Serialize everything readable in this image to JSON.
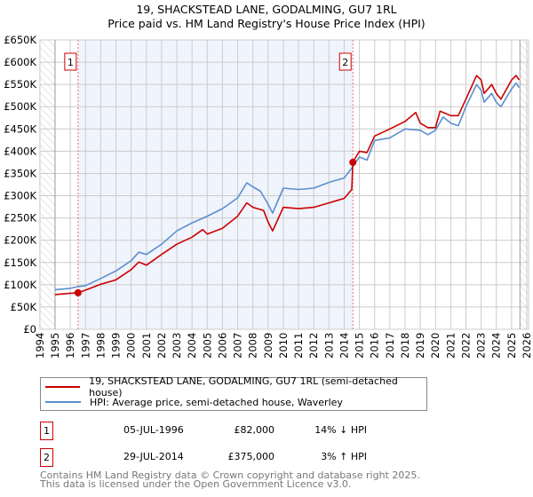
{
  "title_line1": "19, SHACKSTEAD LANE, GODALMING, GU7 1RL",
  "title_line2": "Price paid vs. HM Land Registry's House Price Index (HPI)",
  "chart_data": {
    "type": "line",
    "title": "19, SHACKSTEAD LANE, GODALMING, GU7 1RL — Price paid vs. HM Land Registry's House Price Index (HPI)",
    "xlabel": "",
    "ylabel": "",
    "xlim": [
      1994,
      2026
    ],
    "ylim": [
      0,
      650000
    ],
    "grid": true,
    "x_ticks": [
      "1994",
      "1995",
      "1996",
      "1997",
      "1998",
      "1999",
      "2000",
      "2001",
      "2002",
      "2003",
      "2004",
      "2005",
      "2006",
      "2007",
      "2008",
      "2009",
      "2010",
      "2011",
      "2012",
      "2013",
      "2014",
      "2015",
      "2016",
      "2017",
      "2018",
      "2019",
      "2020",
      "2021",
      "2022",
      "2023",
      "2024",
      "2025",
      "2026"
    ],
    "y_ticks": [
      {
        "v": 0,
        "label": "£0"
      },
      {
        "v": 50000,
        "label": "£50K"
      },
      {
        "v": 100000,
        "label": "£100K"
      },
      {
        "v": 150000,
        "label": "£150K"
      },
      {
        "v": 200000,
        "label": "£200K"
      },
      {
        "v": 250000,
        "label": "£250K"
      },
      {
        "v": 300000,
        "label": "£300K"
      },
      {
        "v": 350000,
        "label": "£350K"
      },
      {
        "v": 400000,
        "label": "£400K"
      },
      {
        "v": 450000,
        "label": "£450K"
      },
      {
        "v": 500000,
        "label": "£500K"
      },
      {
        "v": 550000,
        "label": "£550K"
      },
      {
        "v": 600000,
        "label": "£600K"
      },
      {
        "v": 650000,
        "label": "£650K"
      }
    ],
    "data_start": 1995,
    "data_end": 2025.55,
    "series": [
      {
        "name": "19, SHACKSTEAD LANE, GODALMING, GU7 1RL (semi-detached house)",
        "color": "#cc0000",
        "x": [
          1995,
          1996,
          1996.51,
          1997,
          1998,
          1999,
          2000,
          2000.5,
          2001,
          2002,
          2003,
          2004,
          2004.7,
          2005,
          2006,
          2007,
          2007.6,
          2008,
          2008.7,
          2009,
          2009.3,
          2010,
          2011,
          2012,
          2013,
          2014,
          2014.5,
          2014.57,
          2015,
          2015.5,
          2016,
          2017,
          2018,
          2018.7,
          2019,
          2019.5,
          2020,
          2020.3,
          2021,
          2021.5,
          2022,
          2022.7,
          2023,
          2023.2,
          2023.7,
          2024,
          2024.3,
          2025,
          2025.3,
          2025.5
        ],
        "y": [
          78000,
          81000,
          82000,
          88000,
          101000,
          111000,
          134000,
          151000,
          144000,
          168000,
          191000,
          207000,
          224000,
          214000,
          227000,
          254000,
          284000,
          274000,
          267000,
          241000,
          221000,
          274000,
          271000,
          274000,
          284000,
          294000,
          314000,
          375000,
          400000,
          397000,
          434000,
          450000,
          467000,
          487000,
          463000,
          453000,
          453000,
          490000,
          480000,
          480000,
          517000,
          570000,
          560000,
          530000,
          550000,
          530000,
          517000,
          560000,
          570000,
          560000
        ]
      },
      {
        "name": "HPI: Average price, semi-detached house, Waverley",
        "color": "#5b8fd0",
        "x": [
          1995,
          1996,
          1996.5,
          1997,
          1998,
          1999,
          2000,
          2000.5,
          2001,
          2002,
          2003,
          2004,
          2005,
          2006,
          2007,
          2007.6,
          2008,
          2008.5,
          2009,
          2009.3,
          2010,
          2011,
          2012,
          2013,
          2014,
          2014.57,
          2015,
          2015.5,
          2016,
          2017,
          2018,
          2019,
          2019.5,
          2020,
          2020.5,
          2021,
          2021.5,
          2022,
          2022.7,
          2023,
          2023.2,
          2023.7,
          2024,
          2024.3,
          2025,
          2025.3,
          2025.5
        ],
        "y": [
          89000,
          92000,
          96000,
          98000,
          114000,
          131000,
          154000,
          173000,
          168000,
          191000,
          221000,
          239000,
          254000,
          271000,
          295000,
          329000,
          320000,
          310000,
          281000,
          261000,
          317000,
          314000,
          317000,
          330000,
          340000,
          365000,
          387000,
          380000,
          424000,
          430000,
          450000,
          447000,
          437000,
          447000,
          477000,
          463000,
          457000,
          500000,
          550000,
          537000,
          510000,
          530000,
          510000,
          500000,
          540000,
          553000,
          543000
        ]
      }
    ],
    "sales": [
      {
        "id": "1",
        "x": 1996.51,
        "y": 82000,
        "date": "05-JUL-1996",
        "price": "£82,000",
        "diff": "14% ↓ HPI"
      },
      {
        "id": "2",
        "x": 2014.57,
        "y": 375000,
        "date": "29-JUL-2014",
        "price": "£375,000",
        "diff": "3% ↑ HPI"
      }
    ],
    "legend_placement": "below"
  },
  "colors": {
    "accent_red": "#cc0000",
    "hpi_blue": "#5b8fd0",
    "shade": "#f0f4fc"
  },
  "footer_line1": "Contains HM Land Registry data © Crown copyright and database right 2025.",
  "footer_line2": "This data is licensed under the Open Government Licence v3.0."
}
